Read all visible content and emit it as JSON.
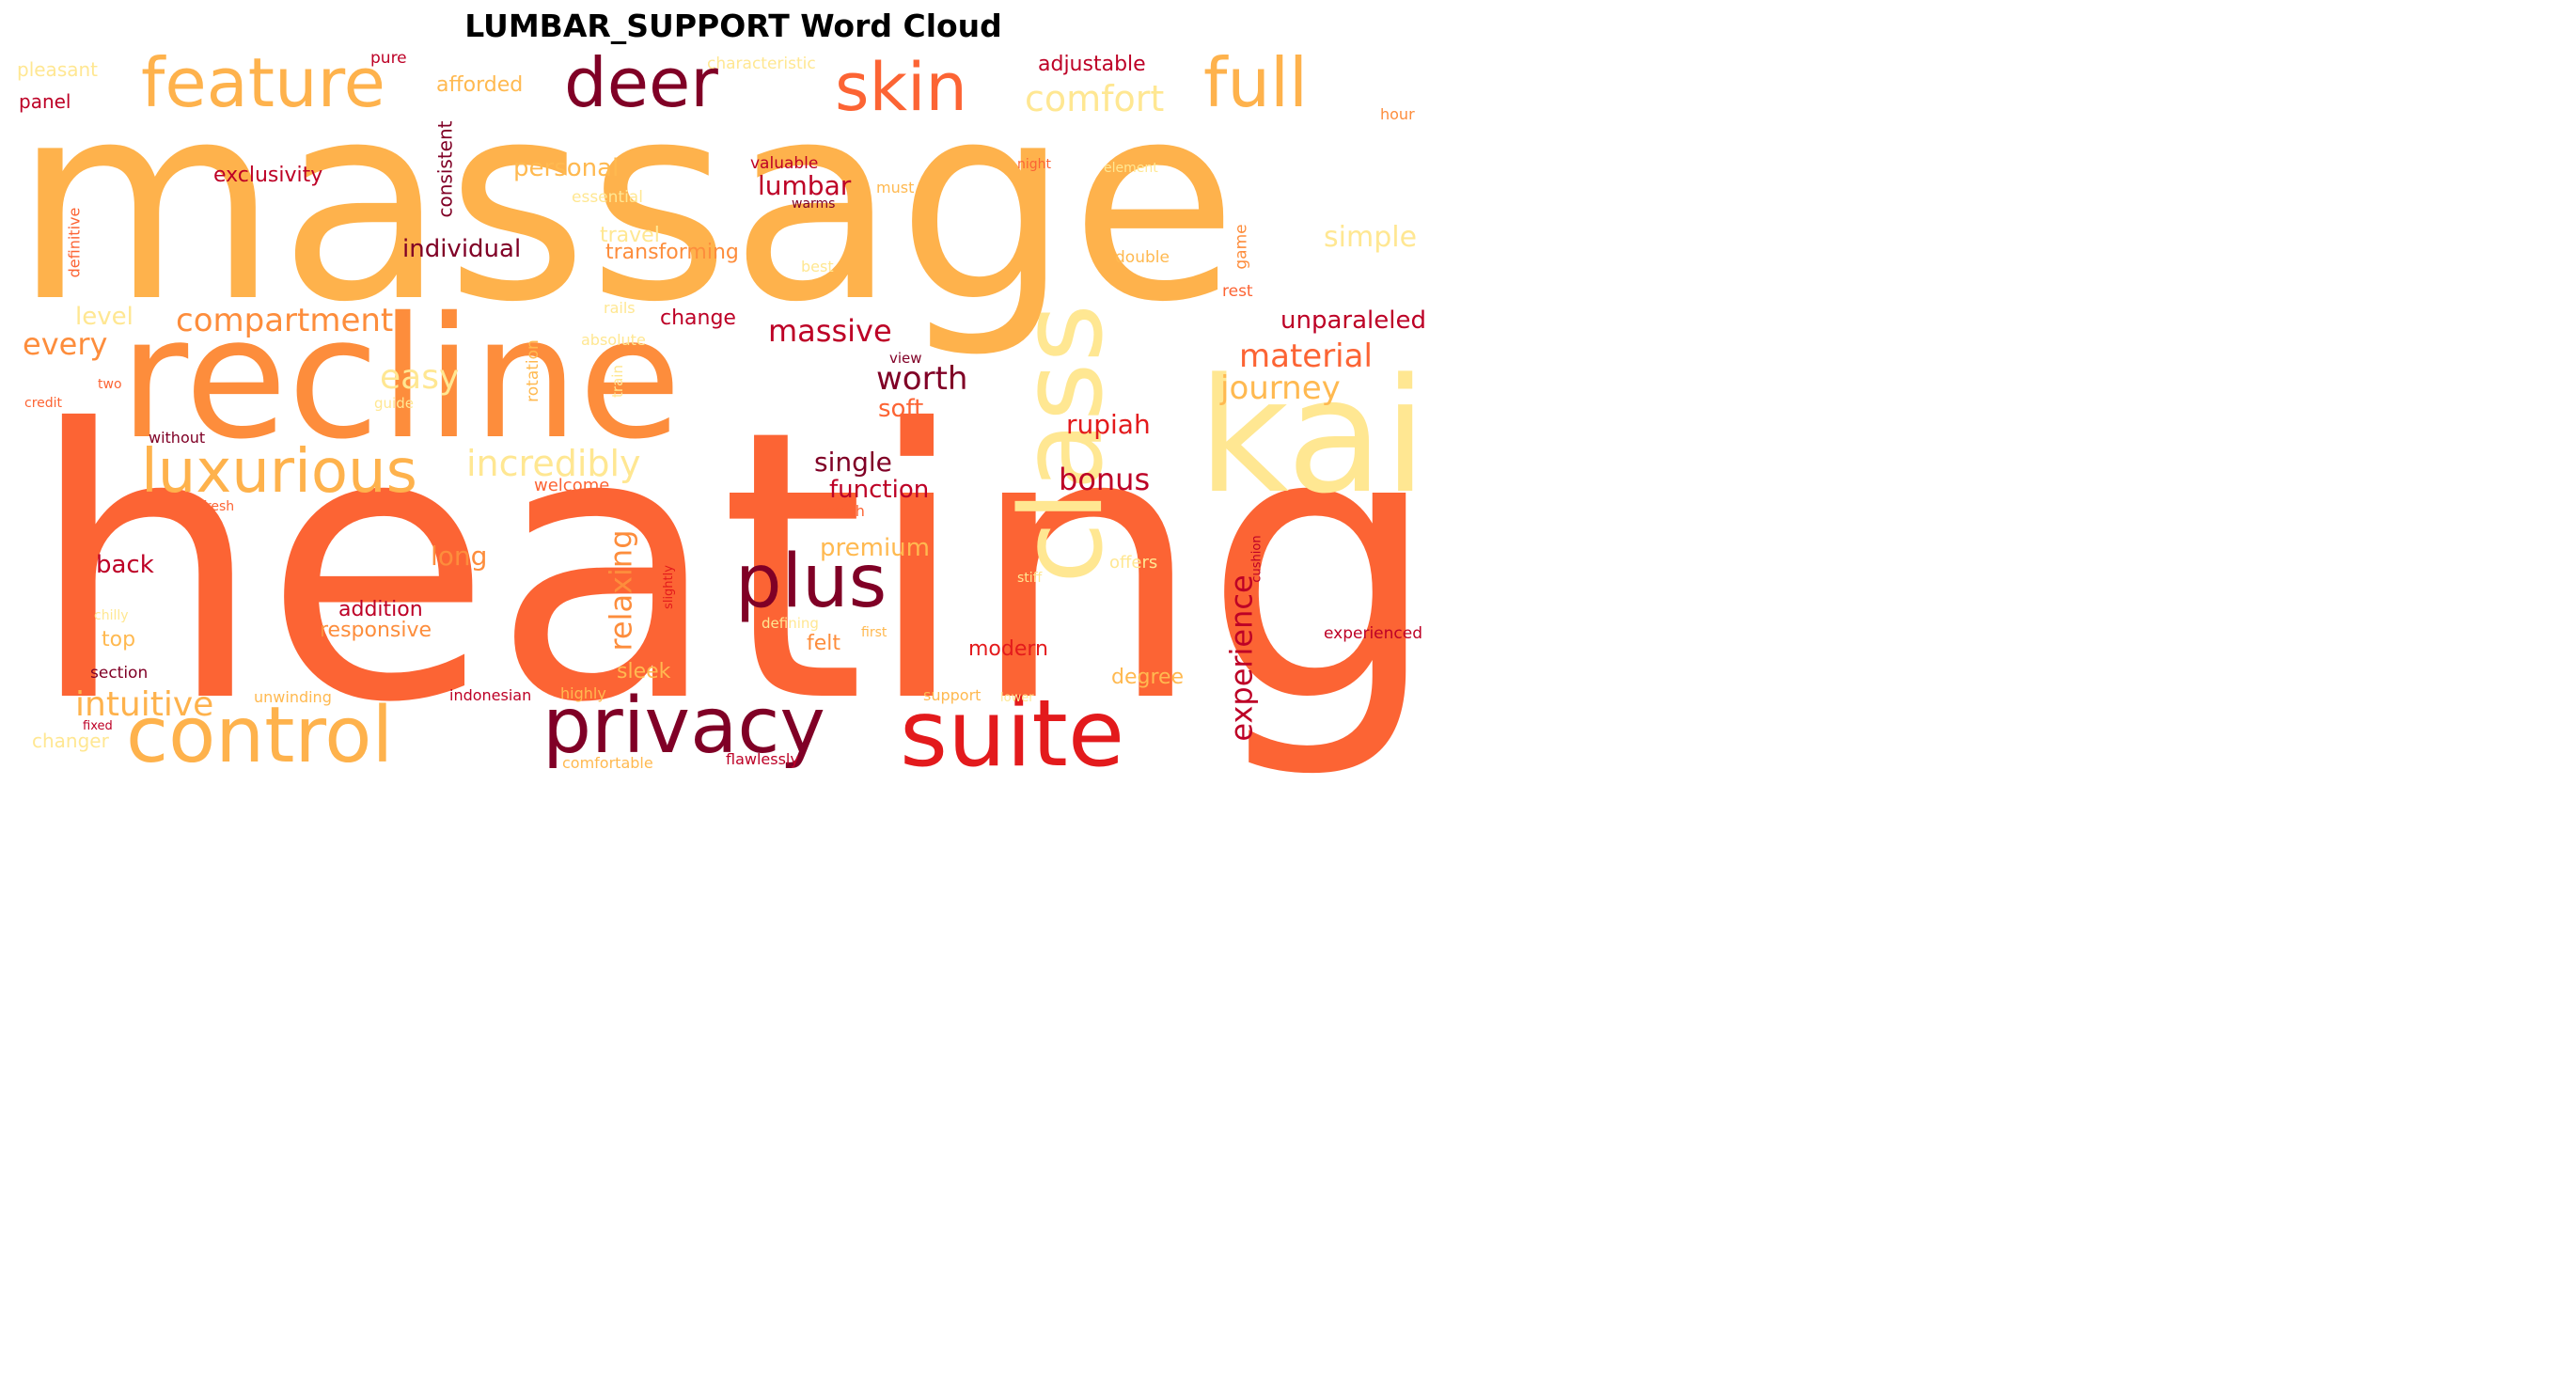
{
  "title": "LUMBAR_SUPPORT Word Cloud",
  "palette": {
    "light_yellow": "#ffe792",
    "yellow": "#ffb950",
    "orange": "#fd8d3c",
    "red_orange": "#fc6434",
    "red": "#e31a1c",
    "crimson": "#bd0026",
    "dark_red": "#800026"
  },
  "words": {
    "massage": "massage",
    "heating": "heating",
    "recline": "recline",
    "kai": "kai",
    "class": "class",
    "suite": "suite",
    "privacy": "privacy",
    "control": "control",
    "plus": "plus",
    "feature": "feature",
    "deer": "deer",
    "skin": "skin",
    "full": "full",
    "luxurious": "luxurious",
    "comfort": "comfort",
    "incredibly": "incredibly",
    "intuitive": "intuitive",
    "compartment": "compartment",
    "experience": "experience",
    "massive": "massive",
    "material": "material",
    "journey": "journey",
    "worth": "worth",
    "easy": "easy",
    "relaxing": "relaxing",
    "bonus": "bonus",
    "individual": "individual",
    "single": "single",
    "function": "function",
    "unparaleled": "unparaleled",
    "every": "every",
    "personal": "personal",
    "lumbar": "lumbar",
    "premium": "premium",
    "rupiah": "rupiah",
    "soft": "soft",
    "back": "back",
    "long": "long",
    "simple": "simple",
    "transforming": "transforming",
    "exclusivity": "exclusivity",
    "adjustable": "adjustable",
    "afforded": "afforded",
    "level": "level",
    "consistent": "consistent",
    "sleek": "sleek",
    "modern": "modern",
    "degree": "degree",
    "addition": "addition",
    "responsive": "responsive",
    "felt": "felt",
    "top": "top",
    "travel": "travel",
    "change": "change",
    "pleasant": "pleasant",
    "panel": "panel",
    "pure": "pure",
    "characteristic": "characteristic",
    "hour": "hour",
    "valuable": "valuable",
    "essential": "essential",
    "must": "must",
    "warms": "warms",
    "night": "night",
    "element": "element",
    "game": "game",
    "double": "double",
    "rest": "rest",
    "best": "best",
    "definitive": "definitive",
    "rails": "rails",
    "absolute": "absolute",
    "rotation": "rotation",
    "train": "train",
    "view": "view",
    "two": "two",
    "credit": "credit",
    "guide": "guide",
    "without": "without",
    "welcome": "welcome",
    "fresh": "fresh",
    "smooth": "smooth",
    "offers": "offers",
    "cushion": "cushion",
    "stiff": "stiff",
    "slightly": "slightly",
    "chilly": "chilly",
    "defining": "defining",
    "first": "first",
    "experienced": "experienced",
    "section": "section",
    "unwinding": "unwinding",
    "indonesian": "indonesian",
    "highly": "highly",
    "support": "support",
    "lower": "lower",
    "fixed": "fixed",
    "changer": "changer",
    "comfortable": "comfortable",
    "flawlessly": "flawlessly"
  }
}
